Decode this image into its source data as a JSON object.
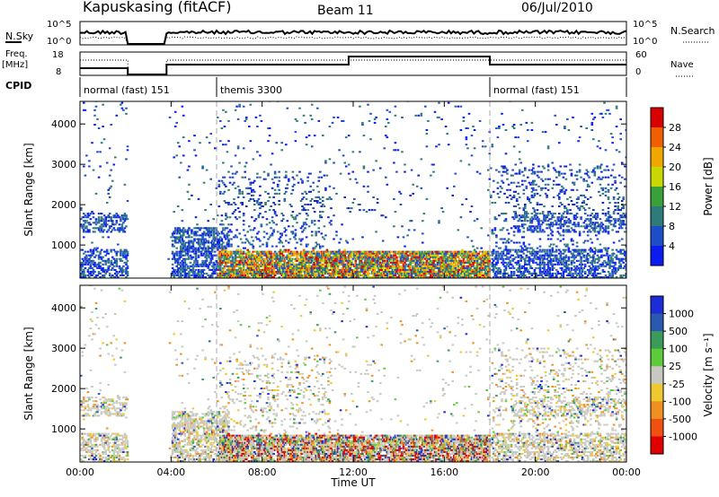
{
  "header": {
    "title": "Kapuskasing (fitACF)",
    "beam": "Beam 11",
    "date": "06/Jul/2010"
  },
  "panels": {
    "nsky_label": "N.Sky",
    "nsky_ticks": [
      "10^5",
      "10^0"
    ],
    "nsearch_label": "N.Search",
    "nsearch_ticks": [
      "10^5",
      "10^0"
    ],
    "freq_label": "Freq.",
    "freq_unit": "[MHz]",
    "freq_ticks": [
      "18",
      "8"
    ],
    "nave_label": "Nave",
    "nave_ticks": [
      "60",
      "0"
    ],
    "cpid_label": "CPID",
    "cpid_segments": [
      {
        "name": "normal (fast) 151",
        "start_h": 0,
        "end_h": 6
      },
      {
        "name": "themis 3300",
        "start_h": 6,
        "end_h": 18
      },
      {
        "name": "normal (fast) 151",
        "start_h": 18,
        "end_h": 24
      }
    ]
  },
  "chart_data": [
    {
      "type": "heatmap",
      "panel": "power",
      "xlabel": "",
      "ylabel": "Slant Range [km]",
      "x_ticks": [
        "00:00",
        "04:00",
        "08:00",
        "12:00",
        "16:00",
        "20:00",
        "00:00"
      ],
      "y_ticks": [
        "1000",
        "2000",
        "3000",
        "4000"
      ],
      "xlim_hours": [
        0,
        24
      ],
      "ylim_km": [
        180,
        4560
      ],
      "colorbar_label": "Power [dB]",
      "colorbar_ticks": [
        "4",
        "8",
        "12",
        "16",
        "20",
        "24",
        "28"
      ],
      "colorbar_colors": [
        "#0a1cf0",
        "#1e4dc8",
        "#2f7a7a",
        "#3aa03a",
        "#c8d800",
        "#f0a800",
        "#f06000",
        "#d80000"
      ],
      "data_gap_hours": [
        2.1,
        3.8
      ],
      "mode_change_hours": [
        6,
        18
      ]
    },
    {
      "type": "heatmap",
      "panel": "velocity",
      "xlabel": "Time UT",
      "ylabel": "Slant Range [km]",
      "x_ticks": [
        "00:00",
        "04:00",
        "08:00",
        "12:00",
        "16:00",
        "20:00",
        "00:00"
      ],
      "y_ticks": [
        "1000",
        "2000",
        "3000",
        "4000"
      ],
      "xlim_hours": [
        0,
        24
      ],
      "ylim_km": [
        180,
        4560
      ],
      "colorbar_label": "Velocity [m s⁻¹]",
      "colorbar_ticks": [
        "1000",
        "500",
        "100",
        "25",
        "-25",
        "-100",
        "-500",
        "-1000"
      ],
      "colorbar_colors": [
        "#1c2cd8",
        "#2a5ab0",
        "#3c9a5a",
        "#5ccc3c",
        "#c8c8c0",
        "#f0c830",
        "#f09020",
        "#f05010",
        "#e00000"
      ],
      "data_gap_hours": [
        2.1,
        3.8
      ],
      "mode_change_hours": [
        6,
        18
      ]
    }
  ]
}
